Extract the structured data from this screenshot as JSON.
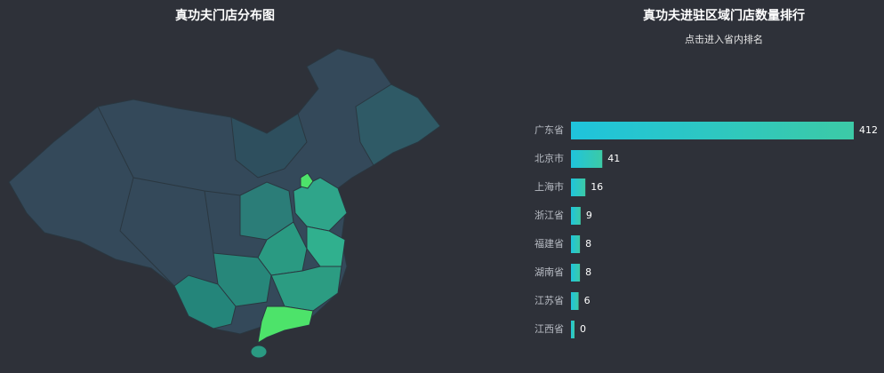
{
  "chart_data": [
    {
      "type": "map",
      "title": "真功夫门店分布图"
    },
    {
      "type": "bar",
      "orientation": "horizontal",
      "title": "真功夫进驻区域门店数量排行",
      "subtitle": "点击进入省内排名",
      "categories": [
        "广东省",
        "北京市",
        "上海市",
        "浙江省",
        "福建省",
        "湖南省",
        "江苏省",
        "江西省"
      ],
      "values": [
        412,
        41,
        16,
        9,
        8,
        8,
        6,
        0
      ],
      "color": [
        "#1fc4dc",
        "#3ccaa6"
      ]
    }
  ]
}
